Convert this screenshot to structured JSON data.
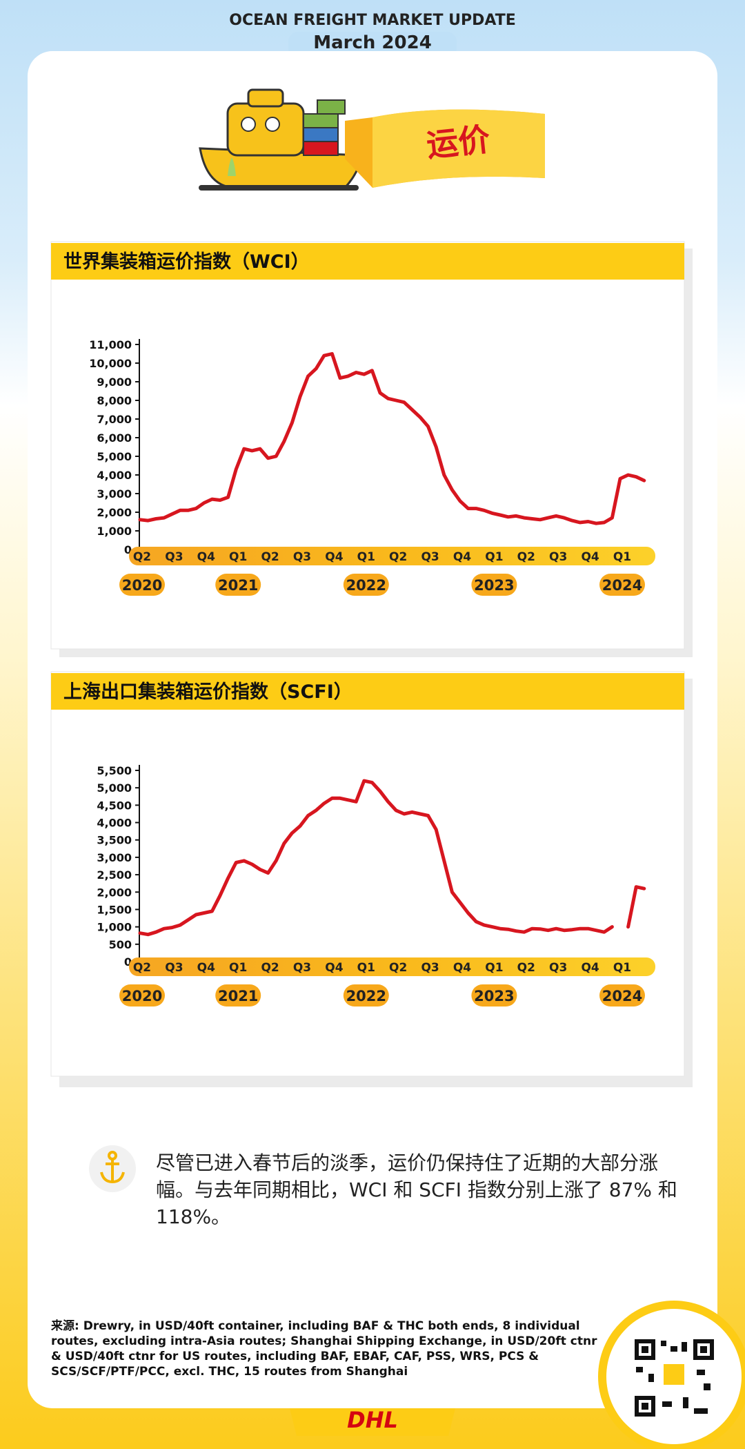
{
  "header": {
    "title": "OCEAN FREIGHT MARKET UPDATE",
    "subtitle": "March 2024"
  },
  "banner": "运价",
  "chart_data": [
    {
      "type": "line",
      "title": "世界集装箱运价指数（WCI）",
      "color": "#d7161f",
      "categories": [
        "Q2",
        null,
        null,
        null,
        "Q3",
        null,
        null,
        null,
        "Q4",
        null,
        null,
        null,
        "Q1",
        null,
        null,
        null,
        "Q2",
        null,
        null,
        null,
        "Q3",
        null,
        null,
        null,
        "Q4",
        null,
        null,
        null,
        "Q1",
        null,
        null,
        null,
        "Q2",
        null,
        null,
        null,
        "Q3",
        null,
        null,
        null,
        "Q4",
        null,
        null,
        null,
        "Q1",
        null,
        null,
        null,
        "Q2",
        null,
        null,
        null,
        "Q3",
        null,
        null,
        null,
        "Q4",
        null,
        null,
        null,
        "Q1",
        null,
        null,
        null
      ],
      "years": [
        "2020",
        null,
        null,
        null,
        null,
        null,
        null,
        null,
        null,
        null,
        null,
        null,
        "2021",
        null,
        null,
        null,
        null,
        null,
        null,
        null,
        null,
        null,
        null,
        null,
        null,
        null,
        null,
        null,
        "2022",
        null,
        null,
        null,
        null,
        null,
        null,
        null,
        null,
        null,
        null,
        null,
        null,
        null,
        null,
        null,
        "2023",
        null,
        null,
        null,
        null,
        null,
        null,
        null,
        null,
        null,
        null,
        null,
        null,
        null,
        null,
        null,
        "2024",
        null,
        null,
        null
      ],
      "values": [
        1600,
        1550,
        1650,
        1700,
        1900,
        2100,
        2100,
        2200,
        2500,
        2700,
        2650,
        2800,
        4300,
        5400,
        5300,
        5400,
        4900,
        5000,
        5800,
        6800,
        8200,
        9300,
        9700,
        10400,
        10500,
        9200,
        9300,
        9500,
        9400,
        9600,
        8400,
        8100,
        8000,
        7900,
        7500,
        7100,
        6600,
        5500,
        4000,
        3200,
        2600,
        2200,
        2200,
        2100,
        1950,
        1850,
        1750,
        1800,
        1700,
        1650,
        1600,
        1700,
        1800,
        1700,
        1550,
        1450,
        1500,
        1400,
        1450,
        1700,
        3800,
        4000,
        3900,
        3700
      ],
      "ylim": [
        0,
        11000
      ],
      "yticks": [
        0,
        {
          "value": 1000,
          "label": "1,000"
        },
        {
          "value": 2000,
          "label": "2,000"
        },
        {
          "value": 3000,
          "label": "3,000"
        },
        {
          "value": 4000,
          "label": "4,000"
        },
        {
          "value": 5000,
          "label": "5,000"
        },
        {
          "value": 6000,
          "label": "6,000"
        },
        {
          "value": 7000,
          "label": "7,000"
        },
        {
          "value": 8000,
          "label": "8,000"
        },
        {
          "value": 9000,
          "label": "9,000"
        },
        {
          "value": 10000,
          "label": "10,000"
        },
        {
          "value": 11000,
          "label": "11,000"
        }
      ]
    },
    {
      "type": "line",
      "title": "上海出口集装箱运价指数（SCFI）",
      "color": "#d7161f",
      "categories": [
        "Q2",
        null,
        null,
        null,
        "Q3",
        null,
        null,
        null,
        "Q4",
        null,
        null,
        null,
        "Q1",
        null,
        null,
        null,
        "Q2",
        null,
        null,
        null,
        "Q3",
        null,
        null,
        null,
        "Q4",
        null,
        null,
        null,
        "Q1",
        null,
        null,
        null,
        "Q2",
        null,
        null,
        null,
        "Q3",
        null,
        null,
        null,
        "Q4",
        null,
        null,
        null,
        "Q1",
        null,
        null,
        null,
        "Q2",
        null,
        null,
        null,
        "Q3",
        null,
        null,
        null,
        "Q4",
        null,
        null,
        null,
        "Q1",
        null,
        null,
        null
      ],
      "years": [
        "2020",
        null,
        null,
        null,
        null,
        null,
        null,
        null,
        null,
        null,
        null,
        null,
        "2021",
        null,
        null,
        null,
        null,
        null,
        null,
        null,
        null,
        null,
        null,
        null,
        null,
        null,
        null,
        null,
        "2022",
        null,
        null,
        null,
        null,
        null,
        null,
        null,
        null,
        null,
        null,
        null,
        null,
        null,
        null,
        null,
        "2023",
        null,
        null,
        null,
        null,
        null,
        null,
        null,
        null,
        null,
        null,
        null,
        null,
        null,
        null,
        null,
        "2024",
        null,
        null,
        null
      ],
      "values": [
        820,
        780,
        850,
        950,
        980,
        1050,
        1200,
        1350,
        1400,
        1450,
        1900,
        2400,
        2850,
        2900,
        2800,
        2650,
        2550,
        2900,
        3400,
        3700,
        3900,
        4200,
        4350,
        4550,
        4700,
        4700,
        4650,
        4600,
        5200,
        5150,
        4900,
        4600,
        4350,
        4250,
        4300,
        4250,
        4200,
        3800,
        2900,
        2000,
        1700,
        1400,
        1150,
        1050,
        1000,
        950,
        930,
        880,
        850,
        950,
        940,
        900,
        950,
        900,
        920,
        950,
        950,
        900,
        850,
        1000,
        null,
        1000,
        2150,
        2100
      ],
      "ylim": [
        0,
        5500
      ],
      "yticks": [
        0,
        500,
        {
          "value": 1000,
          "label": "1,000"
        },
        {
          "value": 1500,
          "label": "1,500"
        },
        {
          "value": 2000,
          "label": "2,000"
        },
        {
          "value": 2500,
          "label": "2,500"
        },
        {
          "value": 3000,
          "label": "3,000"
        },
        {
          "value": 3500,
          "label": "3,500"
        },
        {
          "value": 4000,
          "label": "4,000"
        },
        {
          "value": 4500,
          "label": "4,500"
        },
        {
          "value": 5000,
          "label": "5,000"
        },
        {
          "value": 5500,
          "label": "5,500"
        }
      ]
    }
  ],
  "note": "尽管已进入春节后的淡季，运价仍保持住了近期的大部分涨幅。与去年同期相比，WCI 和 SCFI 指数分别上涨了 87% 和118%。",
  "source": "来源: Drewry, in USD/40ft container, including BAF & THC both ends, 8 individual routes, excluding intra-Asia routes;  Shanghai Shipping Exchange, in USD/20ft ctnr & USD/40ft ctnr for US routes, including BAF, EBAF, CAF, PSS, WRS, PCS & SCS/SCF/PTF/PCC, excl. THC, 15 routes from Shanghai",
  "logo": "DHL"
}
